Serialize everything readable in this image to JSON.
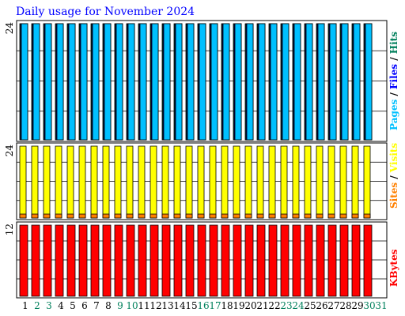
{
  "title": "Daily usage for November 2024",
  "colors": {
    "title": "#0000ff",
    "hits": "#00805c",
    "files": "#0000ff",
    "pages": "#00c0ff",
    "visits": "#ffff00",
    "sites": "#ff8000",
    "kbytes": "#ff0000",
    "weekend_label": "#00805c",
    "weekday_label": "#000000",
    "axis": "#000000"
  },
  "chart_data": [
    {
      "type": "bar",
      "panel": "hits-files-pages",
      "x": [
        1,
        2,
        3,
        4,
        5,
        6,
        7,
        8,
        9,
        10,
        11,
        12,
        13,
        14,
        15,
        16,
        17,
        18,
        19,
        20,
        21,
        22,
        23,
        24,
        25,
        26,
        27,
        28,
        29,
        30
      ],
      "ymax_label": "24",
      "ylim": [
        0,
        24
      ],
      "series": [
        {
          "name": "Hits",
          "values": [
            24,
            24,
            24,
            24,
            24,
            24,
            24,
            24,
            24,
            24,
            24,
            24,
            24,
            24,
            24,
            24,
            24,
            24,
            24,
            24,
            24,
            24,
            24,
            24,
            24,
            24,
            24,
            24,
            24,
            24
          ]
        },
        {
          "name": "Files",
          "values": [
            24,
            24,
            24,
            24,
            24,
            24,
            24,
            24,
            24,
            24,
            24,
            24,
            24,
            24,
            24,
            24,
            24,
            24,
            24,
            24,
            24,
            24,
            24,
            24,
            24,
            24,
            24,
            24,
            24,
            24
          ]
        },
        {
          "name": "Pages",
          "values": [
            24,
            24,
            24,
            24,
            24,
            24,
            24,
            24,
            24,
            24,
            24,
            24,
            24,
            24,
            24,
            24,
            24,
            24,
            24,
            24,
            24,
            24,
            24,
            24,
            24,
            24,
            24,
            24,
            24,
            24
          ]
        }
      ],
      "legend": [
        "Pages",
        "/",
        "Files",
        "/",
        "Hits"
      ]
    },
    {
      "type": "bar",
      "panel": "sites-visits",
      "x": [
        1,
        2,
        3,
        4,
        5,
        6,
        7,
        8,
        9,
        10,
        11,
        12,
        13,
        14,
        15,
        16,
        17,
        18,
        19,
        20,
        21,
        22,
        23,
        24,
        25,
        26,
        27,
        28,
        29,
        30
      ],
      "ymax_label": "24",
      "ylim": [
        0,
        24
      ],
      "series": [
        {
          "name": "Visits",
          "values": [
            24,
            24,
            24,
            24,
            24,
            24,
            24,
            24,
            24,
            24,
            24,
            24,
            24,
            24,
            24,
            24,
            24,
            24,
            24,
            24,
            24,
            24,
            24,
            24,
            24,
            24,
            24,
            24,
            24,
            24
          ]
        },
        {
          "name": "Sites",
          "values": [
            1,
            1,
            1,
            1,
            1,
            1,
            1,
            1,
            1,
            1,
            1,
            1,
            1,
            1,
            1,
            1,
            1,
            1,
            1,
            1,
            1,
            1,
            1,
            1,
            1,
            1,
            1,
            1,
            1,
            1
          ]
        }
      ],
      "legend": [
        "Sites",
        "/",
        "Visits"
      ]
    },
    {
      "type": "bar",
      "panel": "kbytes",
      "x": [
        1,
        2,
        3,
        4,
        5,
        6,
        7,
        8,
        9,
        10,
        11,
        12,
        13,
        14,
        15,
        16,
        17,
        18,
        19,
        20,
        21,
        22,
        23,
        24,
        25,
        26,
        27,
        28,
        29,
        30
      ],
      "ymax_label": "12",
      "ylim": [
        0,
        12
      ],
      "series": [
        {
          "name": "KBytes",
          "values": [
            12,
            12,
            12,
            12,
            12,
            12,
            12,
            12,
            12,
            12,
            12,
            12,
            12,
            12,
            12,
            12,
            12,
            12,
            12,
            12,
            12,
            12,
            12,
            12,
            12,
            12,
            12,
            12,
            12,
            12
          ]
        }
      ],
      "legend": [
        "KBytes"
      ]
    }
  ],
  "x_labels": [
    {
      "day": "1",
      "weekend": false
    },
    {
      "day": "2",
      "weekend": true
    },
    {
      "day": "3",
      "weekend": true
    },
    {
      "day": "4",
      "weekend": false
    },
    {
      "day": "5",
      "weekend": false
    },
    {
      "day": "6",
      "weekend": false
    },
    {
      "day": "7",
      "weekend": false
    },
    {
      "day": "8",
      "weekend": false
    },
    {
      "day": "9",
      "weekend": true
    },
    {
      "day": "10",
      "weekend": true
    },
    {
      "day": "11",
      "weekend": false
    },
    {
      "day": "12",
      "weekend": false
    },
    {
      "day": "13",
      "weekend": false
    },
    {
      "day": "14",
      "weekend": false
    },
    {
      "day": "15",
      "weekend": false
    },
    {
      "day": "16",
      "weekend": true
    },
    {
      "day": "17",
      "weekend": true
    },
    {
      "day": "18",
      "weekend": false
    },
    {
      "day": "19",
      "weekend": false
    },
    {
      "day": "20",
      "weekend": false
    },
    {
      "day": "21",
      "weekend": false
    },
    {
      "day": "22",
      "weekend": false
    },
    {
      "day": "23",
      "weekend": true
    },
    {
      "day": "24",
      "weekend": true
    },
    {
      "day": "25",
      "weekend": false
    },
    {
      "day": "26",
      "weekend": false
    },
    {
      "day": "27",
      "weekend": false
    },
    {
      "day": "28",
      "weekend": false
    },
    {
      "day": "29",
      "weekend": false
    },
    {
      "day": "30",
      "weekend": true
    },
    {
      "day": "31",
      "weekend": true
    }
  ]
}
